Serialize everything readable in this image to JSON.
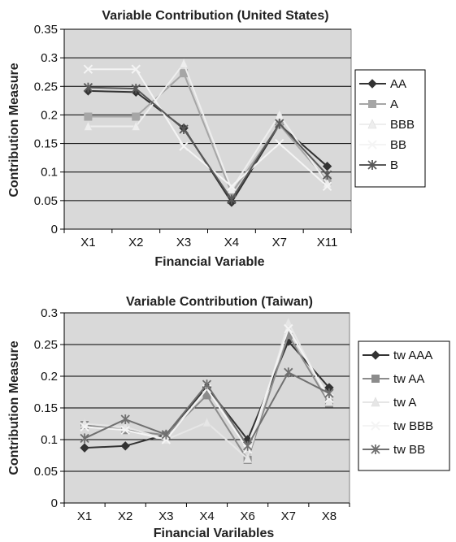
{
  "colors": {
    "plot_background": "#d9d9d9",
    "gridline": "#000000",
    "series_colors": [
      "#3a3a3a",
      "#9e9e9e",
      "#eeeeee",
      "#f4f4f4",
      "#666666"
    ]
  },
  "chart_data": [
    {
      "type": "line",
      "title": "Variable Contribution (United States)",
      "xlabel": "Financial Variable",
      "ylabel": "Contribution Measure",
      "categories": [
        "X1",
        "X2",
        "X3",
        "X4",
        "X7",
        "X11"
      ],
      "ylim": [
        0,
        0.35
      ],
      "yticks": [
        0,
        0.05,
        0.1,
        0.15,
        0.2,
        0.25,
        0.3,
        0.35
      ],
      "ytick_labels": [
        "0",
        "0.05",
        "0.1",
        "0.15",
        "0.2",
        "0.25",
        "0.3",
        "0.35"
      ],
      "grid": true,
      "legend_position": "right",
      "series": [
        {
          "name": "AA",
          "marker": "diamond",
          "color": "#333333",
          "values": [
            0.242,
            0.24,
            0.177,
            0.047,
            0.183,
            0.11
          ]
        },
        {
          "name": "A",
          "marker": "square",
          "color": "#a6a6a6",
          "values": [
            0.197,
            0.197,
            0.273,
            0.063,
            0.183,
            0.085
          ]
        },
        {
          "name": "BBB",
          "marker": "triangle",
          "color": "#eeeeee",
          "values": [
            0.18,
            0.18,
            0.29,
            0.07,
            0.2,
            0.08
          ]
        },
        {
          "name": "BB",
          "marker": "x",
          "color": "#f4f4f4",
          "values": [
            0.28,
            0.28,
            0.145,
            0.075,
            0.15,
            0.075
          ]
        },
        {
          "name": "B",
          "marker": "star",
          "color": "#595959",
          "values": [
            0.248,
            0.246,
            0.175,
            0.052,
            0.185,
            0.095
          ]
        }
      ]
    },
    {
      "type": "line",
      "title": "Variable Contribution (Taiwan)",
      "xlabel": "Financial Varilables",
      "ylabel": "Contribution Measure",
      "categories": [
        "X1",
        "X2",
        "X3",
        "X4",
        "X6",
        "X7",
        "X8"
      ],
      "ylim": [
        0,
        0.3
      ],
      "yticks": [
        0,
        0.05,
        0.1,
        0.15,
        0.2,
        0.25,
        0.3
      ],
      "ytick_labels": [
        "0",
        "0.05",
        "0.1",
        "0.15",
        "0.2",
        "0.25",
        "0.3"
      ],
      "grid": true,
      "legend_position": "right",
      "series": [
        {
          "name": "tw AAA",
          "marker": "diamond",
          "color": "#333333",
          "values": [
            0.087,
            0.09,
            0.108,
            0.183,
            0.1,
            0.255,
            0.182
          ]
        },
        {
          "name": "tw AA",
          "marker": "square",
          "color": "#8c8c8c",
          "values": [
            0.123,
            0.115,
            0.107,
            0.17,
            0.068,
            0.265,
            0.157
          ]
        },
        {
          "name": "tw A",
          "marker": "triangle",
          "color": "#e6e6e6",
          "values": [
            0.125,
            0.12,
            0.1,
            0.127,
            0.07,
            0.285,
            0.16
          ]
        },
        {
          "name": "tw BBB",
          "marker": "x",
          "color": "#f4f4f4",
          "values": [
            0.12,
            0.115,
            0.1,
            0.18,
            0.085,
            0.275,
            0.165
          ]
        },
        {
          "name": "tw BB",
          "marker": "star",
          "color": "#707070",
          "values": [
            0.102,
            0.132,
            0.108,
            0.187,
            0.09,
            0.206,
            0.173
          ]
        }
      ]
    }
  ]
}
